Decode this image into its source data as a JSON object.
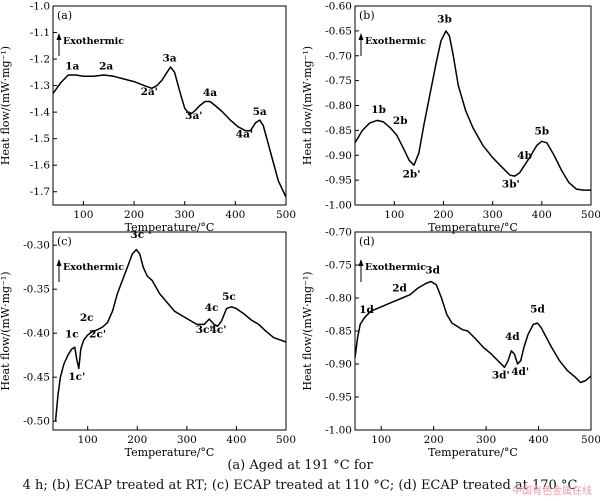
{
  "caption": {
    "line1": "(a) Aged at 191 °C for",
    "line2": "4 h; (b) ECAP treated at RT; (c) ECAP treated at 110 °C; (d) ECAP treated at 170 °C"
  },
  "watermark": "中国有色金属在线",
  "chart_data": [
    {
      "type": "line",
      "panel_label": "(a)",
      "xlabel": "Temperature/°C",
      "ylabel": "Heat flow/(mW·mg⁻¹)",
      "annotation": "Exothermic",
      "xlim": [
        40,
        500
      ],
      "ylim": [
        -1.75,
        -1.0
      ],
      "xticks": [
        100,
        200,
        300,
        400,
        500
      ],
      "yticks": [
        -1.0,
        -1.1,
        -1.2,
        -1.3,
        -1.4,
        -1.5,
        -1.6,
        -1.7
      ],
      "ytick_labels": [
        "-1.0",
        "-1.1",
        "-1.2",
        "-1.3",
        "-1.4",
        "-1.5",
        "-1.6",
        "-1.7"
      ],
      "x": [
        40,
        55,
        70,
        85,
        100,
        120,
        140,
        160,
        180,
        200,
        220,
        235,
        245,
        255,
        265,
        272,
        280,
        290,
        300,
        310,
        320,
        330,
        340,
        350,
        360,
        375,
        390,
        405,
        420,
        430,
        440,
        448,
        455,
        465,
        475,
        485,
        500
      ],
      "y": [
        -1.33,
        -1.29,
        -1.26,
        -1.26,
        -1.265,
        -1.265,
        -1.26,
        -1.265,
        -1.275,
        -1.285,
        -1.3,
        -1.31,
        -1.3,
        -1.28,
        -1.25,
        -1.23,
        -1.25,
        -1.32,
        -1.385,
        -1.41,
        -1.395,
        -1.375,
        -1.36,
        -1.36,
        -1.375,
        -1.4,
        -1.43,
        -1.455,
        -1.47,
        -1.47,
        -1.44,
        -1.43,
        -1.45,
        -1.52,
        -1.59,
        -1.66,
        -1.72
      ],
      "peak_labels": [
        {
          "text": "1a",
          "x": 78,
          "y": -1.24,
          "anchor": "middle"
        },
        {
          "text": "2a",
          "x": 145,
          "y": -1.24,
          "anchor": "middle"
        },
        {
          "text": "2a'",
          "x": 230,
          "y": -1.335,
          "anchor": "middle"
        },
        {
          "text": "3a",
          "x": 270,
          "y": -1.21,
          "anchor": "middle"
        },
        {
          "text": "3a'",
          "x": 318,
          "y": -1.425,
          "anchor": "middle"
        },
        {
          "text": "4a",
          "x": 350,
          "y": -1.34,
          "anchor": "middle"
        },
        {
          "text": "4a'",
          "x": 418,
          "y": -1.495,
          "anchor": "middle"
        },
        {
          "text": "5a",
          "x": 448,
          "y": -1.41,
          "anchor": "middle"
        }
      ]
    },
    {
      "type": "line",
      "panel_label": "(b)",
      "xlabel": "Temperature/°C",
      "ylabel": "Heat flow/(mW·mg⁻¹)",
      "annotation": "Exothermic",
      "xlim": [
        20,
        500
      ],
      "ylim": [
        -1.0,
        -0.6
      ],
      "xticks": [
        100,
        200,
        300,
        400,
        500
      ],
      "yticks": [
        -0.6,
        -0.65,
        -0.7,
        -0.75,
        -0.8,
        -0.85,
        -0.9,
        -0.95,
        -1.0
      ],
      "ytick_labels": [
        "-0.60",
        "-0.65",
        "-0.70",
        "-0.75",
        "-0.80",
        "-0.85",
        "-0.90",
        "-0.95",
        "-1.00"
      ],
      "x": [
        20,
        35,
        50,
        65,
        78,
        92,
        105,
        118,
        130,
        140,
        150,
        160,
        172,
        185,
        195,
        205,
        212,
        220,
        230,
        245,
        260,
        280,
        300,
        320,
        335,
        345,
        355,
        365,
        375,
        390,
        400,
        410,
        425,
        440,
        455,
        470,
        485,
        500
      ],
      "y": [
        -0.875,
        -0.85,
        -0.835,
        -0.83,
        -0.833,
        -0.845,
        -0.86,
        -0.885,
        -0.91,
        -0.92,
        -0.895,
        -0.84,
        -0.78,
        -0.715,
        -0.67,
        -0.65,
        -0.66,
        -0.7,
        -0.76,
        -0.81,
        -0.845,
        -0.88,
        -0.905,
        -0.925,
        -0.94,
        -0.942,
        -0.935,
        -0.92,
        -0.905,
        -0.88,
        -0.872,
        -0.875,
        -0.9,
        -0.93,
        -0.955,
        -0.968,
        -0.97,
        -0.97
      ],
      "peak_labels": [
        {
          "text": "1b",
          "x": 68,
          "y": -0.815,
          "anchor": "middle"
        },
        {
          "text": "2b",
          "x": 112,
          "y": -0.837,
          "anchor": "middle"
        },
        {
          "text": "2b'",
          "x": 135,
          "y": -0.945,
          "anchor": "middle"
        },
        {
          "text": "3b",
          "x": 202,
          "y": -0.633,
          "anchor": "middle"
        },
        {
          "text": "3b'",
          "x": 337,
          "y": -0.965,
          "anchor": "middle"
        },
        {
          "text": "4b",
          "x": 365,
          "y": -0.908,
          "anchor": "middle"
        },
        {
          "text": "5b",
          "x": 400,
          "y": -0.858,
          "anchor": "middle"
        }
      ]
    },
    {
      "type": "line",
      "panel_label": "(c)",
      "xlabel": "Temperature/°C",
      "ylabel": "Heat flow/(mW·mg⁻¹)",
      "annotation": "Exothermic",
      "xlim": [
        30,
        500
      ],
      "ylim": [
        -0.51,
        -0.285
      ],
      "xticks": [
        100,
        200,
        300,
        400,
        500
      ],
      "yticks": [
        -0.3,
        -0.35,
        -0.4,
        -0.45,
        -0.5
      ],
      "ytick_labels": [
        "-0.30",
        "-0.35",
        "-0.40",
        "-0.45",
        "-0.50"
      ],
      "x": [
        35,
        40,
        45,
        52,
        60,
        68,
        74,
        78,
        82,
        86,
        92,
        100,
        110,
        120,
        130,
        140,
        150,
        160,
        170,
        180,
        190,
        198,
        205,
        212,
        220,
        230,
        245,
        260,
        275,
        290,
        305,
        320,
        335,
        345,
        355,
        362,
        370,
        380,
        390,
        400,
        415,
        430,
        445,
        460,
        475,
        490,
        500
      ],
      "y": [
        -0.5,
        -0.47,
        -0.45,
        -0.435,
        -0.425,
        -0.418,
        -0.416,
        -0.43,
        -0.44,
        -0.418,
        -0.408,
        -0.402,
        -0.398,
        -0.396,
        -0.393,
        -0.388,
        -0.375,
        -0.355,
        -0.34,
        -0.325,
        -0.31,
        -0.305,
        -0.31,
        -0.325,
        -0.335,
        -0.34,
        -0.355,
        -0.365,
        -0.375,
        -0.38,
        -0.385,
        -0.39,
        -0.39,
        -0.384,
        -0.39,
        -0.392,
        -0.386,
        -0.372,
        -0.37,
        -0.372,
        -0.378,
        -0.385,
        -0.39,
        -0.398,
        -0.405,
        -0.408,
        -0.41
      ],
      "peak_labels": [
        {
          "text": "1c",
          "x": 68,
          "y": -0.405,
          "anchor": "middle"
        },
        {
          "text": "1c'",
          "x": 78,
          "y": -0.453,
          "anchor": "middle"
        },
        {
          "text": "2c",
          "x": 98,
          "y": -0.386,
          "anchor": "middle"
        },
        {
          "text": "2c'",
          "x": 120,
          "y": -0.405,
          "anchor": "middle"
        },
        {
          "text": "3c",
          "x": 200,
          "y": -0.292,
          "anchor": "middle"
        },
        {
          "text": "3c'",
          "x": 335,
          "y": -0.4,
          "anchor": "middle"
        },
        {
          "text": "4c",
          "x": 350,
          "y": -0.375,
          "anchor": "middle"
        },
        {
          "text": "4c'",
          "x": 363,
          "y": -0.4,
          "anchor": "middle"
        },
        {
          "text": "5c",
          "x": 385,
          "y": -0.362,
          "anchor": "middle"
        }
      ]
    },
    {
      "type": "line",
      "panel_label": "(d)",
      "xlabel": "Temperature/°C",
      "ylabel": "Heat flow/(mW·mg⁻¹)",
      "annotation": "Exothermic",
      "xlim": [
        50,
        500
      ],
      "ylim": [
        -1.0,
        -0.7
      ],
      "xticks": [
        100,
        200,
        300,
        400,
        500
      ],
      "yticks": [
        -0.7,
        -0.75,
        -0.8,
        -0.85,
        -0.9,
        -0.95,
        -1.0
      ],
      "ytick_labels": [
        "-0.70",
        "-0.75",
        "-0.80",
        "-0.85",
        "-0.90",
        "-0.95",
        "-1.00"
      ],
      "x": [
        50,
        55,
        60,
        68,
        80,
        95,
        110,
        125,
        140,
        155,
        170,
        185,
        195,
        205,
        215,
        225,
        235,
        245,
        255,
        265,
        280,
        295,
        310,
        325,
        335,
        342,
        348,
        354,
        360,
        366,
        372,
        380,
        390,
        398,
        405,
        415,
        425,
        440,
        455,
        470,
        480,
        490,
        500
      ],
      "y": [
        -0.89,
        -0.86,
        -0.84,
        -0.83,
        -0.82,
        -0.815,
        -0.81,
        -0.805,
        -0.8,
        -0.795,
        -0.785,
        -0.778,
        -0.775,
        -0.78,
        -0.8,
        -0.825,
        -0.838,
        -0.843,
        -0.848,
        -0.85,
        -0.862,
        -0.875,
        -0.885,
        -0.897,
        -0.905,
        -0.895,
        -0.88,
        -0.885,
        -0.9,
        -0.895,
        -0.875,
        -0.855,
        -0.84,
        -0.838,
        -0.845,
        -0.86,
        -0.875,
        -0.895,
        -0.91,
        -0.92,
        -0.928,
        -0.925,
        -0.918
      ],
      "peak_labels": [
        {
          "text": "1d",
          "x": 72,
          "y": -0.823,
          "anchor": "middle"
        },
        {
          "text": "2d",
          "x": 135,
          "y": -0.79,
          "anchor": "middle"
        },
        {
          "text": "3d",
          "x": 198,
          "y": -0.763,
          "anchor": "middle"
        },
        {
          "text": "3d'",
          "x": 328,
          "y": -0.922,
          "anchor": "middle"
        },
        {
          "text": "4d",
          "x": 350,
          "y": -0.864,
          "anchor": "middle"
        },
        {
          "text": "4d'",
          "x": 365,
          "y": -0.917,
          "anchor": "middle"
        },
        {
          "text": "5d",
          "x": 398,
          "y": -0.822,
          "anchor": "middle"
        }
      ]
    }
  ]
}
